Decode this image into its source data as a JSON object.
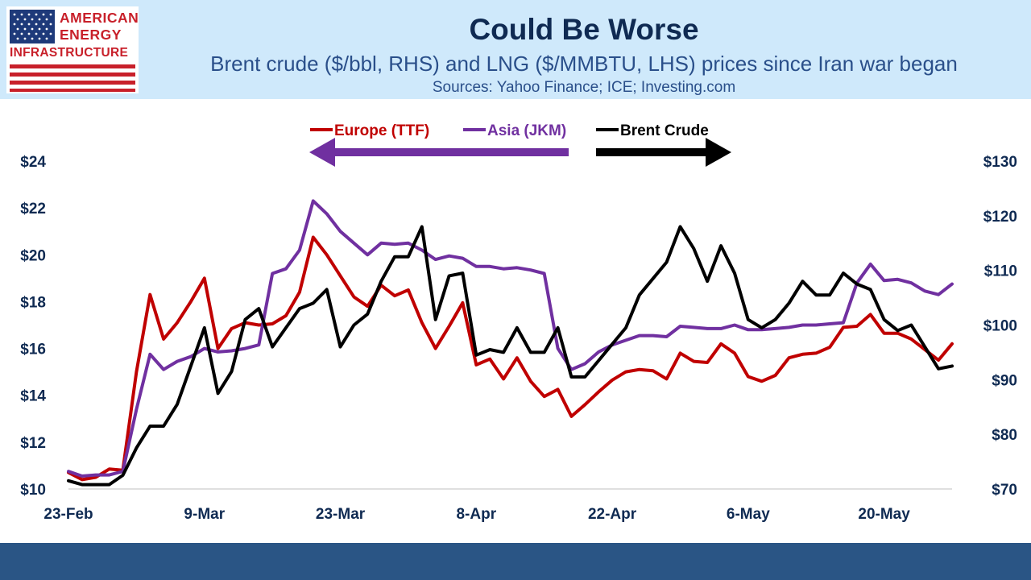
{
  "logo": {
    "line1": "AMERICAN",
    "line2": "ENERGY",
    "line3": "INFRASTRUCTURE"
  },
  "header": {
    "title": "Could Be Worse",
    "subtitle": "Brent crude ($/bbl, RHS) and LNG ($/MMBTU, LHS) prices since Iran war began",
    "sources": "Sources: Yahoo Finance; ICE; Investing.com"
  },
  "colors": {
    "header_bg": "#cfe9fb",
    "footer_bg": "#2a5585",
    "europe": "#c00000",
    "asia": "#7030a0",
    "brent": "#000000",
    "title": "#0f2a52"
  },
  "chart_data": {
    "type": "line",
    "legend_position": "top-center",
    "grid": false,
    "x_ticks": [
      "23-Feb",
      "9-Mar",
      "23-Mar",
      "8-Apr",
      "22-Apr",
      "6-May",
      "20-May"
    ],
    "y_left": {
      "ticks": [
        "$10",
        "$12",
        "$14",
        "$16",
        "$18",
        "$20",
        "$22",
        "$24"
      ],
      "ylim": [
        10,
        24
      ]
    },
    "y_right": {
      "ticks": [
        "$70",
        "$80",
        "$90",
        "$100",
        "$110",
        "$120",
        "$130"
      ],
      "ylim": [
        70,
        130
      ]
    },
    "legend_arrows": {
      "left_axis_series": [
        "Europe (TTF)",
        "Asia (JKM)"
      ],
      "right_axis_series": [
        "Brent Crude"
      ]
    },
    "series": [
      {
        "name": "Europe (TTF)",
        "axis": "left",
        "color": "#c00000",
        "values": [
          10.7,
          10.4,
          10.5,
          10.85,
          10.8,
          15.0,
          18.3,
          16.4,
          17.1,
          18.0,
          19.0,
          16.0,
          16.85,
          17.1,
          17.0,
          17.05,
          17.4,
          18.4,
          20.75,
          20.0,
          19.1,
          18.2,
          17.8,
          18.7,
          18.25,
          18.5,
          17.1,
          16.0,
          16.95,
          17.95,
          15.3,
          15.55,
          14.7,
          15.6,
          14.6,
          13.95,
          14.25,
          13.1,
          13.6,
          14.15,
          14.65,
          15.0,
          15.1,
          15.05,
          14.7,
          15.8,
          15.45,
          15.4,
          16.2,
          15.8,
          14.8,
          14.6,
          14.85,
          15.6,
          15.75,
          15.8,
          16.05,
          16.9,
          16.95,
          17.45,
          16.65,
          16.65,
          16.4,
          15.95,
          15.5,
          16.2
        ]
      },
      {
        "name": "Asia (JKM)",
        "axis": "left",
        "color": "#7030a0",
        "values": [
          10.75,
          10.55,
          10.6,
          10.6,
          10.75,
          13.4,
          15.75,
          15.1,
          15.45,
          15.65,
          16.0,
          15.85,
          15.9,
          16.0,
          16.15,
          19.2,
          19.4,
          20.2,
          22.3,
          21.75,
          21.0,
          20.5,
          20.0,
          20.5,
          20.45,
          20.5,
          20.2,
          19.8,
          19.95,
          19.85,
          19.5,
          19.5,
          19.4,
          19.45,
          19.35,
          19.2,
          16.0,
          15.1,
          15.35,
          15.85,
          16.15,
          16.35,
          16.55,
          16.55,
          16.5,
          16.95,
          16.9,
          16.85,
          16.85,
          17.0,
          16.8,
          16.8,
          16.85,
          16.9,
          17.0,
          17.0,
          17.05,
          17.1,
          18.8,
          19.6,
          18.9,
          18.95,
          18.8,
          18.45,
          18.3,
          18.75
        ]
      },
      {
        "name": "Brent Crude",
        "axis": "right",
        "color": "#000000",
        "values": [
          71.5,
          70.8,
          70.8,
          70.8,
          72.5,
          77.5,
          81.5,
          81.5,
          85.5,
          92.5,
          99.5,
          87.5,
          91.5,
          101.0,
          103.0,
          96.0,
          99.5,
          103.0,
          104.0,
          106.5,
          96.0,
          100.0,
          102.0,
          108.0,
          112.5,
          112.5,
          118.0,
          101.0,
          109.0,
          109.5,
          94.5,
          95.5,
          95.0,
          99.5,
          95.0,
          95.0,
          99.5,
          90.5,
          90.5,
          93.5,
          96.5,
          99.5,
          105.5,
          108.5,
          111.5,
          118.0,
          114.0,
          108.0,
          114.5,
          109.5,
          101.0,
          99.5,
          101.0,
          104.0,
          108.0,
          105.5,
          105.5,
          109.5,
          107.5,
          106.5,
          101.0,
          99.0,
          100.0,
          96.0,
          92.0,
          92.5
        ]
      }
    ]
  }
}
